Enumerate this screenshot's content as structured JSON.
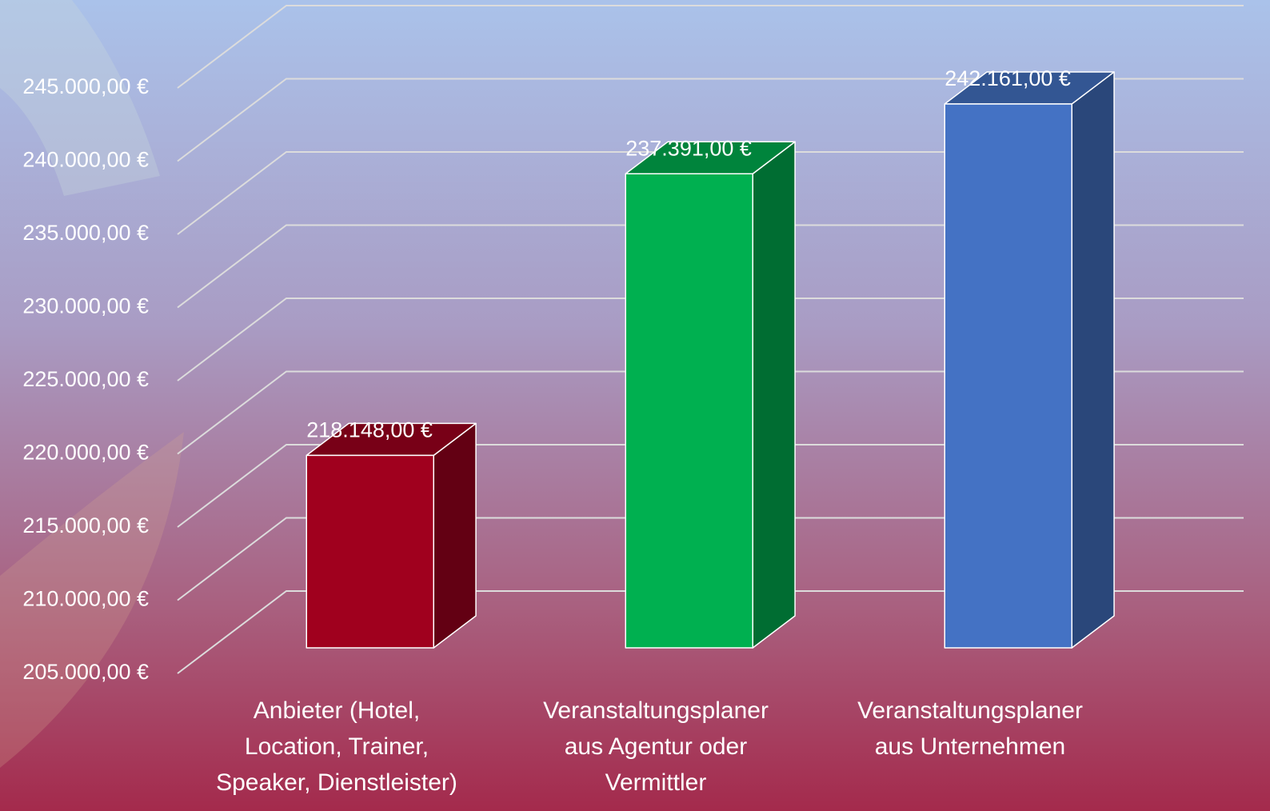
{
  "chart_data": {
    "type": "bar3d",
    "categories": [
      [
        "Anbieter (Hotel,",
        "Location, Trainer,",
        "Speaker, Dienstleister)"
      ],
      [
        "Veranstaltungsplaner",
        "aus Agentur oder",
        "Vermittler"
      ],
      [
        "Veranstaltungsplaner",
        "aus Unternehmen"
      ]
    ],
    "values": [
      218148,
      237391,
      242161
    ],
    "value_labels": [
      "218.148,00 €",
      "237.391,00 €",
      "242.161,00 €"
    ],
    "colors": [
      "#a0001e",
      "#00b050",
      "#4472c4"
    ],
    "ylim": [
      205000,
      245000
    ],
    "yticks": [
      {
        "value": 205000,
        "label": "205.000,00 €"
      },
      {
        "value": 210000,
        "label": "210.000,00 €"
      },
      {
        "value": 215000,
        "label": "215.000,00 €"
      },
      {
        "value": 220000,
        "label": "220.000,00 €"
      },
      {
        "value": 225000,
        "label": "225.000,00 €"
      },
      {
        "value": 230000,
        "label": "230.000,00 €"
      },
      {
        "value": 235000,
        "label": "235.000,00 €"
      },
      {
        "value": 240000,
        "label": "240.000,00 €"
      },
      {
        "value": 245000,
        "label": "245.000,00 €"
      }
    ],
    "grid": true
  }
}
